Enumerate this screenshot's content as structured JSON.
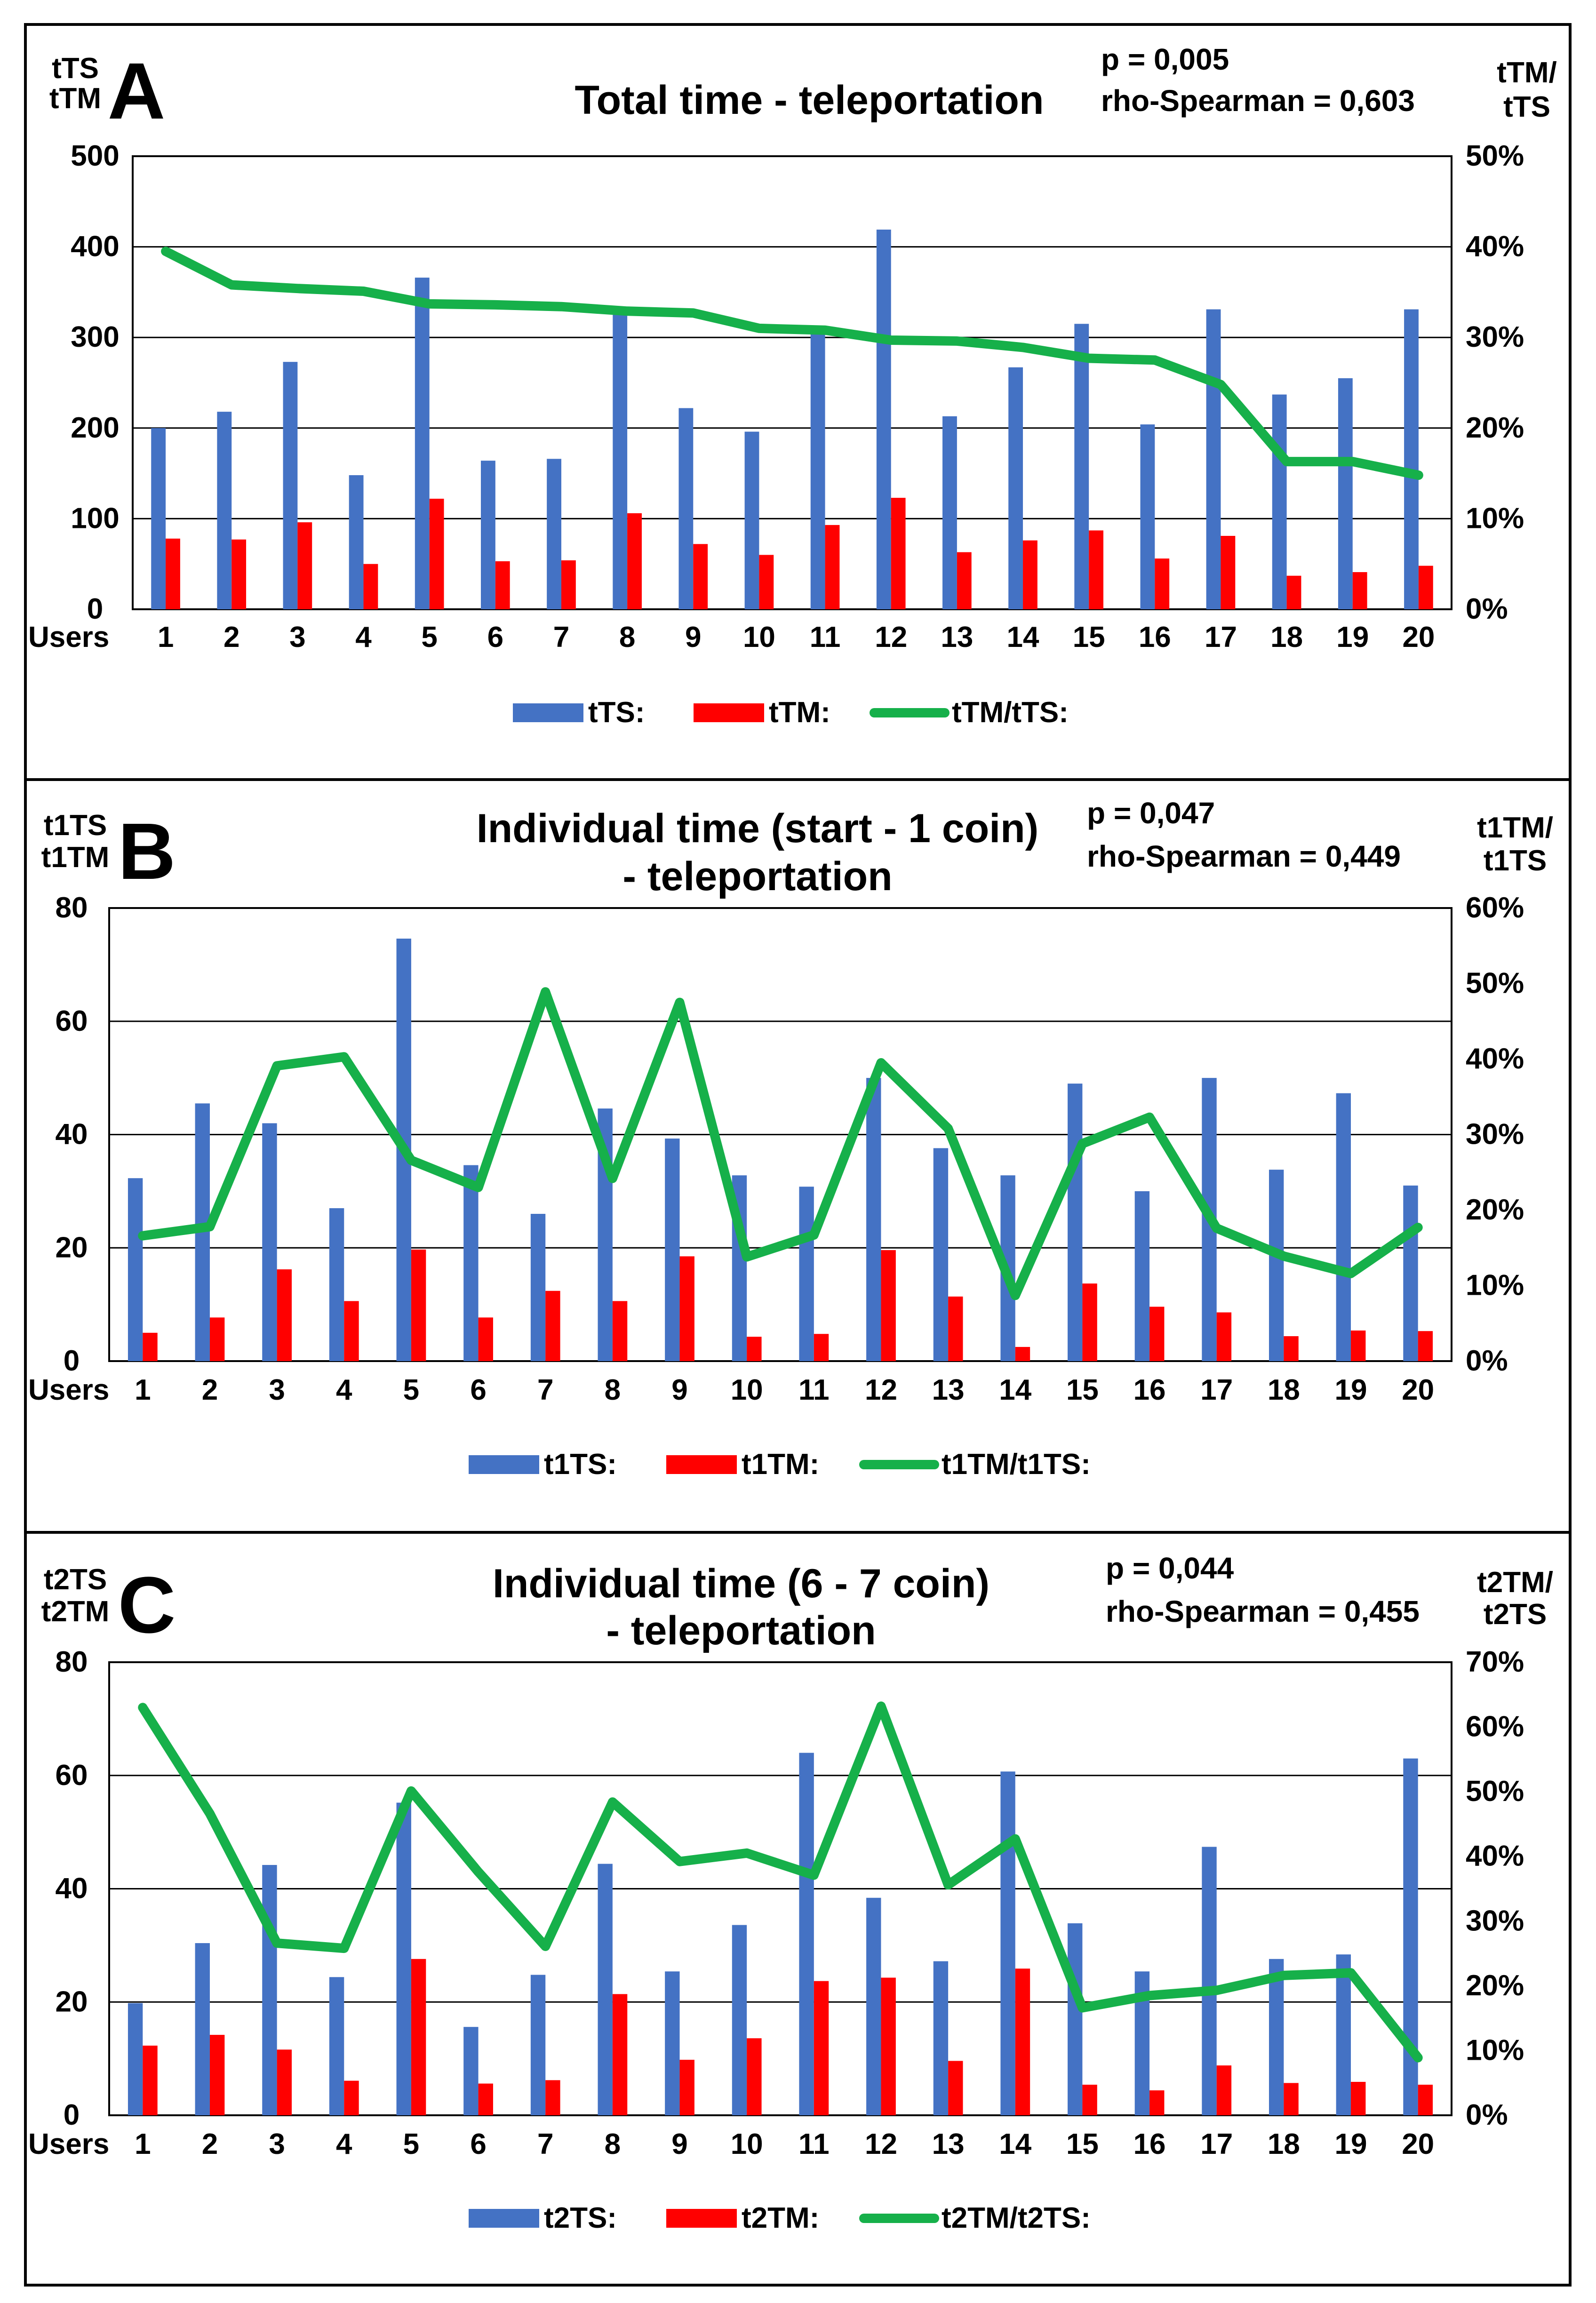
{
  "colors": {
    "blue": "#4472C4",
    "red": "#FF0000",
    "green": "#16B04A",
    "grid": "#000000",
    "text": "#000000"
  },
  "chart_data": [
    {
      "panel_letter": "A",
      "type": "bar",
      "title": "Total time - teleportation",
      "title_line2": "",
      "stats": {
        "p": "p = 0,005",
        "rho": "rho-Spearman = 0,603"
      },
      "left_axis_label": {
        "blue": "tTS",
        "red": "tTM"
      },
      "right_axis_label": {
        "line1": "tTM/",
        "line2": "tTS"
      },
      "xlabel": "Users",
      "categories": [
        "1",
        "2",
        "3",
        "4",
        "5",
        "6",
        "7",
        "8",
        "9",
        "10",
        "11",
        "12",
        "13",
        "14",
        "15",
        "16",
        "17",
        "18",
        "19",
        "20"
      ],
      "ylim": [
        0,
        500
      ],
      "yticks": [
        "0",
        "100",
        "200",
        "300",
        "400",
        "500"
      ],
      "y2lim": [
        0,
        50
      ],
      "y2ticks": [
        "0%",
        "10%",
        "20%",
        "30%",
        "40%",
        "50%"
      ],
      "series": [
        {
          "name": "tTS:",
          "kind": "bar",
          "color": "#4472C4",
          "values": [
            200,
            218,
            273,
            148,
            366,
            164,
            166,
            330,
            222,
            196,
            309,
            419,
            213,
            267,
            315,
            204,
            331,
            237,
            255,
            331
          ]
        },
        {
          "name": "tTM:",
          "kind": "bar",
          "color": "#FF0000",
          "values": [
            78,
            77,
            96,
            50,
            122,
            53,
            54,
            106,
            72,
            60,
            93,
            123,
            63,
            76,
            87,
            56,
            81,
            37,
            41,
            48
          ]
        },
        {
          "name": "tTM/tTS:",
          "kind": "line",
          "axis": "right",
          "color": "#16B04A",
          "values": [
            39.5,
            35.8,
            35.4,
            35.1,
            33.7,
            33.6,
            33.4,
            32.9,
            32.7,
            31.0,
            30.8,
            29.7,
            29.6,
            28.9,
            27.7,
            27.5,
            24.8,
            16.3,
            16.3,
            14.8
          ]
        }
      ],
      "legend": [
        "tTS:",
        "tTM:",
        "tTM/tTS:"
      ]
    },
    {
      "panel_letter": "B",
      "type": "bar",
      "title": "Individual time (start - 1 coin)",
      "title_line2": "- teleportation",
      "stats": {
        "p": "p = 0,047",
        "rho": "rho-Spearman = 0,449"
      },
      "left_axis_label": {
        "blue": "t1TS",
        "red": "t1TM"
      },
      "right_axis_label": {
        "line1": "t1TM/",
        "line2": "t1TS"
      },
      "xlabel": "Users",
      "categories": [
        "1",
        "2",
        "3",
        "4",
        "5",
        "6",
        "7",
        "8",
        "9",
        "10",
        "11",
        "12",
        "13",
        "14",
        "15",
        "16",
        "17",
        "18",
        "19",
        "20"
      ],
      "ylim": [
        0,
        80
      ],
      "yticks": [
        "0",
        "20",
        "40",
        "60",
        "80"
      ],
      "y2lim": [
        0,
        60
      ],
      "y2ticks": [
        "0%",
        "10%",
        "20%",
        "30%",
        "40%",
        "50%",
        "60%"
      ],
      "series": [
        {
          "name": "t1TS:",
          "kind": "bar",
          "color": "#4472C4",
          "values": [
            32.3,
            45.5,
            42,
            27,
            74.6,
            34.6,
            26,
            44.6,
            39.3,
            32.8,
            30.8,
            50,
            37.6,
            32.8,
            49,
            30,
            50,
            33.8,
            47.3,
            31
          ]
        },
        {
          "name": "t1TM:",
          "kind": "bar",
          "color": "#FF0000",
          "values": [
            5,
            7.7,
            16.2,
            10.6,
            19.7,
            7.7,
            12.4,
            10.6,
            18.5,
            4.3,
            4.8,
            19.6,
            11.4,
            2.5,
            13.7,
            9.6,
            8.6,
            4.4,
            5.4,
            5.3
          ]
        },
        {
          "name": "t1TM/t1TS:",
          "kind": "line",
          "axis": "right",
          "color": "#16B04A",
          "values": [
            16.6,
            17.8,
            39.1,
            40.3,
            26.6,
            23.0,
            48.9,
            24.2,
            47.5,
            13.8,
            16.7,
            39.5,
            30.8,
            8.7,
            28.8,
            32.3,
            17.6,
            13.9,
            11.6,
            17.7
          ]
        }
      ],
      "legend": [
        "t1TS:",
        "t1TM:",
        "t1TM/t1TS:"
      ]
    },
    {
      "panel_letter": "C",
      "type": "bar",
      "title": "Individual time (6 - 7 coin)",
      "title_line2": "- teleportation",
      "stats": {
        "p": "p = 0,044",
        "rho": "rho-Spearman = 0,455"
      },
      "left_axis_label": {
        "blue": "t2TS",
        "red": "t2TM"
      },
      "right_axis_label": {
        "line1": "t2TM/",
        "line2": "t2TS"
      },
      "xlabel": "Users",
      "categories": [
        "1",
        "2",
        "3",
        "4",
        "5",
        "6",
        "7",
        "8",
        "9",
        "10",
        "11",
        "12",
        "13",
        "14",
        "15",
        "16",
        "17",
        "18",
        "19",
        "20"
      ],
      "ylim": [
        0,
        80
      ],
      "yticks": [
        "0",
        "20",
        "40",
        "60",
        "80"
      ],
      "y2lim": [
        0,
        70
      ],
      "y2ticks": [
        "0%",
        "10%",
        "20%",
        "30%",
        "40%",
        "50%",
        "60%",
        "70%"
      ],
      "series": [
        {
          "name": "t2TS:",
          "kind": "bar",
          "color": "#4472C4",
          "values": [
            19.8,
            30.4,
            44.2,
            24.4,
            55.2,
            15.6,
            24.8,
            44.4,
            25.4,
            33.6,
            64,
            38.4,
            27.2,
            60.7,
            33.9,
            25.4,
            47.4,
            27.6,
            28.4,
            63
          ]
        },
        {
          "name": "t2TM:",
          "kind": "bar",
          "color": "#FF0000",
          "values": [
            12.3,
            14.2,
            11.6,
            6.1,
            27.6,
            5.6,
            6.2,
            21.4,
            9.8,
            13.6,
            23.7,
            24.3,
            9.6,
            25.9,
            5.4,
            4.4,
            8.8,
            5.7,
            5.9,
            5.4
          ]
        },
        {
          "name": "t2TM/t2TS:",
          "kind": "line",
          "axis": "right",
          "color": "#16B04A",
          "values": [
            63.0,
            46.6,
            26.6,
            25.8,
            50.1,
            37.6,
            26.1,
            48.4,
            39.2,
            40.5,
            37.1,
            63.2,
            35.6,
            42.7,
            16.6,
            18.5,
            19.3,
            21.6,
            22.0,
            8.9
          ]
        }
      ],
      "legend": [
        "t2TS:",
        "t2TM:",
        "t2TM/t2TS:"
      ]
    }
  ]
}
